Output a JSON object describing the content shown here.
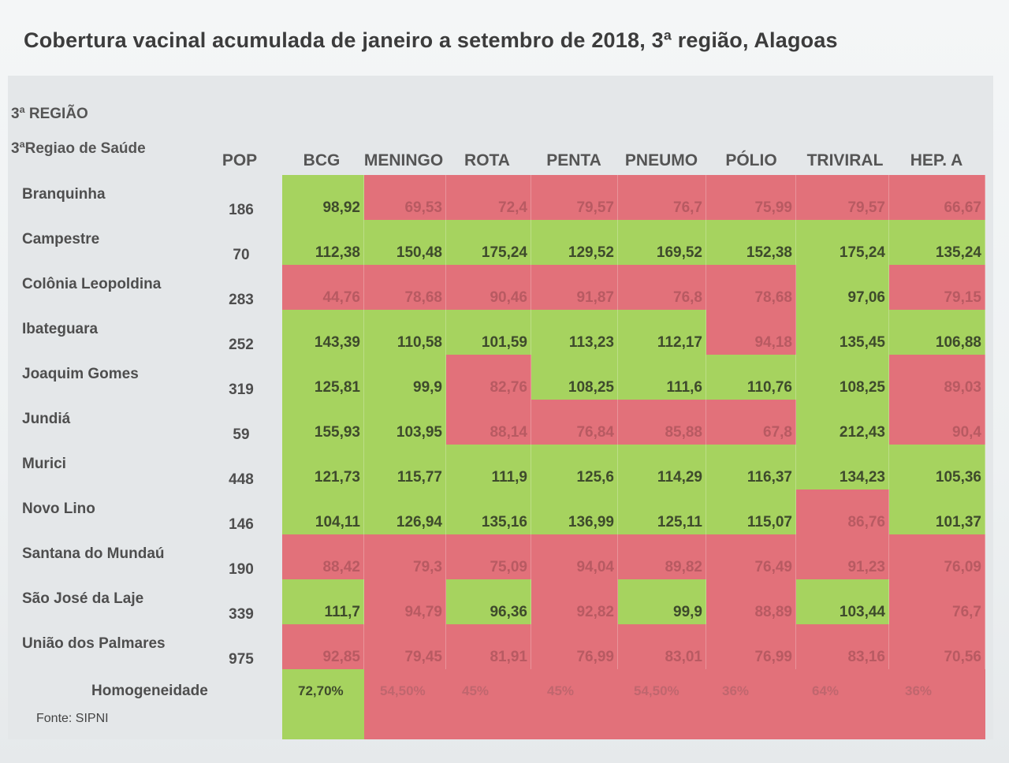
{
  "title": "Cobertura vacinal acumulada de janeiro a setembro de 2018, 3ª região, Alagoas",
  "region_label": "3ª REGIÃO",
  "health_region_label": "3ªRegiao de Saúde",
  "columns": [
    "POP",
    "BCG",
    "MENINGO",
    "ROTA",
    "PENTA",
    "PNEUMO",
    "PÓLIO",
    "TRIVIRAL",
    "HEP. A"
  ],
  "colors": {
    "meets_target": "#a6d35f",
    "below_target": "#e2717a"
  },
  "rows": [
    {
      "name": "Branquinha",
      "pop": "186",
      "values": [
        "98,92",
        "69,53",
        "72,4",
        "79,57",
        "76,7",
        "75,99",
        "79,57",
        "66,67"
      ],
      "status": [
        "g",
        "r",
        "r",
        "r",
        "r",
        "r",
        "r",
        "r"
      ]
    },
    {
      "name": "Campestre",
      "pop": "70",
      "values": [
        "112,38",
        "150,48",
        "175,24",
        "129,52",
        "169,52",
        "152,38",
        "175,24",
        "135,24"
      ],
      "status": [
        "g",
        "g",
        "g",
        "g",
        "g",
        "g",
        "g",
        "g"
      ]
    },
    {
      "name": "Colônia Leopoldina",
      "pop": "283",
      "values": [
        "44,76",
        "78,68",
        "90,46",
        "91,87",
        "76,8",
        "78,68",
        "97,06",
        "79,15"
      ],
      "status": [
        "r",
        "r",
        "r",
        "r",
        "r",
        "r",
        "g",
        "r"
      ]
    },
    {
      "name": "Ibateguara",
      "pop": "252",
      "values": [
        "143,39",
        "110,58",
        "101,59",
        "113,23",
        "112,17",
        "94,18",
        "135,45",
        "106,88"
      ],
      "status": [
        "g",
        "g",
        "g",
        "g",
        "g",
        "r",
        "g",
        "g"
      ]
    },
    {
      "name": "Joaquim Gomes",
      "pop": "319",
      "values": [
        "125,81",
        "99,9",
        "82,76",
        "108,25",
        "111,6",
        "110,76",
        "108,25",
        "89,03"
      ],
      "status": [
        "g",
        "g",
        "r",
        "g",
        "g",
        "g",
        "g",
        "r"
      ]
    },
    {
      "name": "Jundiá",
      "pop": "59",
      "values": [
        "155,93",
        "103,95",
        "88,14",
        "76,84",
        "85,88",
        "67,8",
        "212,43",
        "90,4"
      ],
      "status": [
        "g",
        "g",
        "r",
        "r",
        "r",
        "r",
        "g",
        "r"
      ]
    },
    {
      "name": "Murici",
      "pop": "448",
      "values": [
        "121,73",
        "115,77",
        "111,9",
        "125,6",
        "114,29",
        "116,37",
        "134,23",
        "105,36"
      ],
      "status": [
        "g",
        "g",
        "g",
        "g",
        "g",
        "g",
        "g",
        "g"
      ]
    },
    {
      "name": "Novo Lino",
      "pop": "146",
      "values": [
        "104,11",
        "126,94",
        "135,16",
        "136,99",
        "125,11",
        "115,07",
        "86,76",
        "101,37"
      ],
      "status": [
        "g",
        "g",
        "g",
        "g",
        "g",
        "g",
        "r",
        "g"
      ]
    },
    {
      "name": "Santana do Mundaú",
      "pop": "190",
      "values": [
        "88,42",
        "79,3",
        "75,09",
        "94,04",
        "89,82",
        "76,49",
        "91,23",
        "76,09"
      ],
      "status": [
        "r",
        "r",
        "r",
        "r",
        "r",
        "r",
        "r",
        "r"
      ]
    },
    {
      "name": "São José da Laje",
      "pop": "339",
      "values": [
        "111,7",
        "94,79",
        "96,36",
        "92,82",
        "99,9",
        "88,89",
        "103,44",
        "76,7"
      ],
      "status": [
        "g",
        "r",
        "g",
        "r",
        "g",
        "r",
        "g",
        "r"
      ]
    },
    {
      "name": "União dos Palmares",
      "pop": "975",
      "values": [
        "92,85",
        "79,45",
        "81,91",
        "76,99",
        "83,01",
        "76,99",
        "83,16",
        "70,56"
      ],
      "status": [
        "r",
        "r",
        "r",
        "r",
        "r",
        "r",
        "r",
        "r"
      ]
    }
  ],
  "homogeneity": {
    "label": "Homogeneidade",
    "values": [
      "72,70%",
      "54,50%",
      "45%",
      "45%",
      "54,50%",
      "36%",
      "64%",
      "36%"
    ],
    "status": [
      "g",
      "r",
      "r",
      "r",
      "r",
      "r",
      "r",
      "r"
    ]
  },
  "source": "Fonte: SIPNI"
}
